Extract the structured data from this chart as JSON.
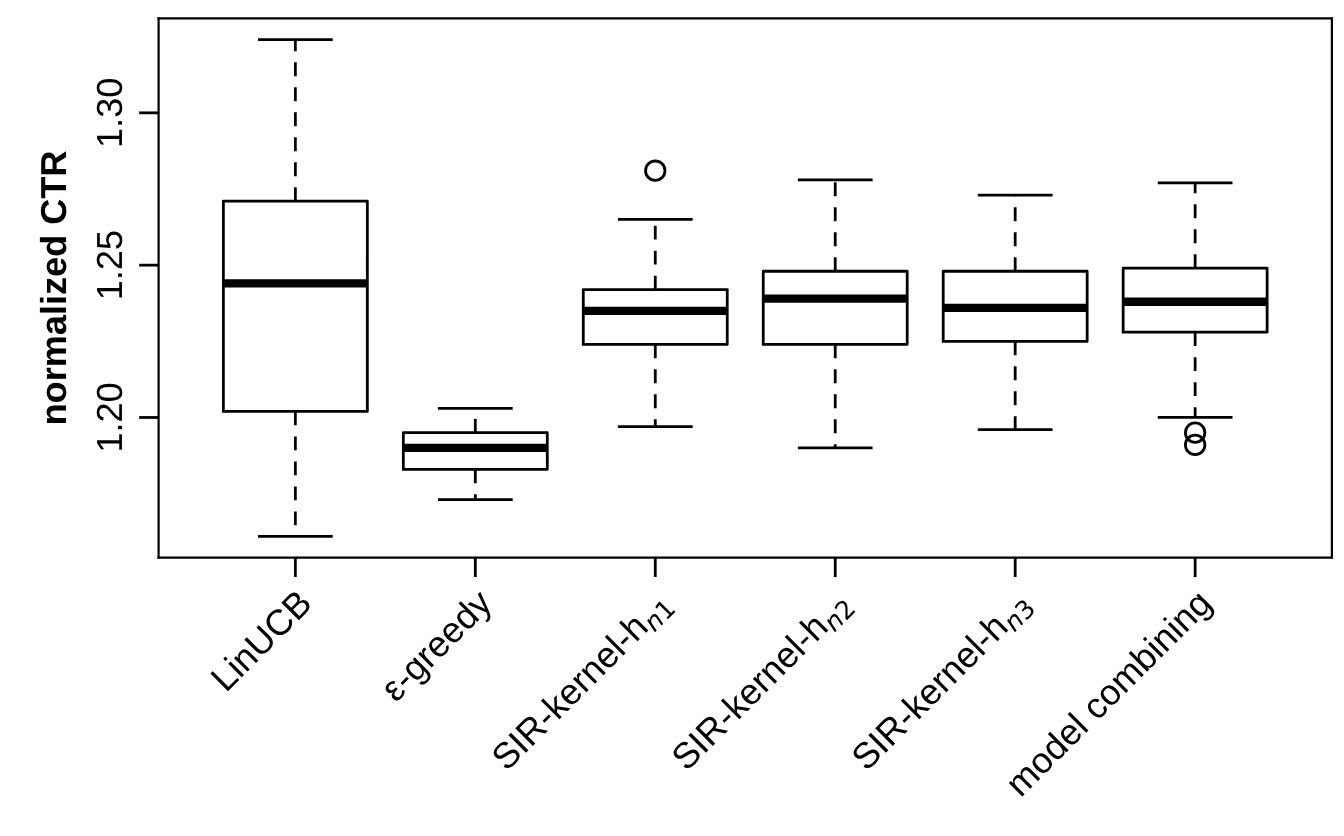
{
  "chart_data": {
    "type": "box",
    "ylabel": "normalized CTR",
    "categories": [
      "LinUCB",
      "ε-greedy",
      "SIR-kernel-h$_{n1}$",
      "SIR-kernel-h$_{n2}$",
      "SIR-kernel-h$_{n3}$",
      "model combining"
    ],
    "boxes": [
      {
        "low": 1.161,
        "q1": 1.202,
        "median": 1.244,
        "q3": 1.271,
        "high": 1.324
      },
      {
        "low": 1.173,
        "q1": 1.183,
        "median": 1.19,
        "q3": 1.195,
        "high": 1.203
      },
      {
        "low": 1.197,
        "q1": 1.224,
        "median": 1.235,
        "q3": 1.242,
        "high": 1.265,
        "outliers": [
          1.281
        ]
      },
      {
        "low": 1.19,
        "q1": 1.224,
        "median": 1.239,
        "q3": 1.248,
        "high": 1.278
      },
      {
        "low": 1.196,
        "q1": 1.225,
        "median": 1.236,
        "q3": 1.248,
        "high": 1.273
      },
      {
        "low": 1.2,
        "q1": 1.228,
        "median": 1.238,
        "q3": 1.249,
        "high": 1.277,
        "outliers": [
          1.195,
          1.191
        ]
      }
    ],
    "color": "#000000",
    "ylim": [
      1.154,
      1.331
    ],
    "yticks": [
      {
        "value": 1.2,
        "label": "1.20"
      },
      {
        "value": 1.25,
        "label": "1.25"
      },
      {
        "value": 1.3,
        "label": "1.30"
      }
    ],
    "grid": false,
    "legend": false
  }
}
